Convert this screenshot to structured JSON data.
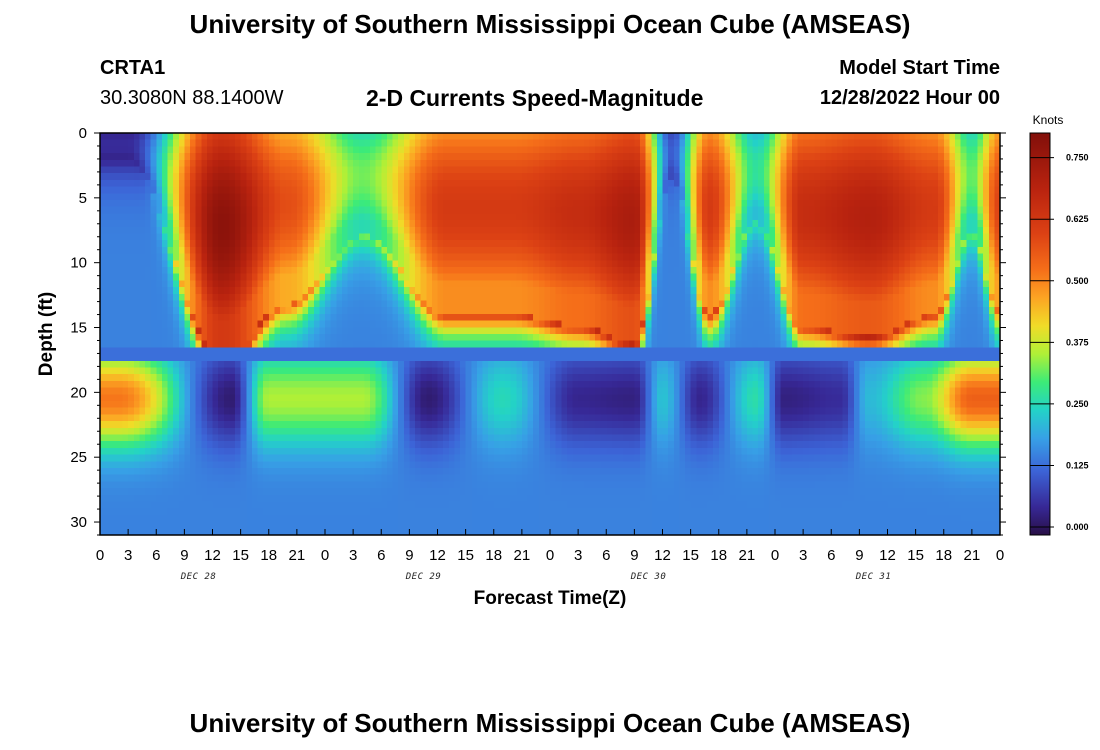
{
  "header": {
    "title": "University of Southern Mississippi Ocean Cube (AMSEAS)",
    "station": "CRTA1",
    "location": "30.3080N  88.1400W",
    "chart_title": "2-D Currents Speed-Magnitude",
    "model_start_label": "Model Start Time",
    "model_start_value": "12/28/2022 Hour 00"
  },
  "footer": {
    "title": "University of Southern Mississippi Ocean Cube (AMSEAS)"
  },
  "chart_data": {
    "type": "heatmap",
    "xlabel": "Forecast Time(Z)",
    "ylabel": "Depth (ft)",
    "x_range_hours": [
      0,
      96
    ],
    "y_range_ft": [
      0,
      31
    ],
    "y_reversed": true,
    "x_tick_labels": [
      "0",
      "3",
      "6",
      "9",
      "12",
      "15",
      "18",
      "21",
      "0",
      "3",
      "6",
      "9",
      "12",
      "15",
      "18",
      "21",
      "0",
      "3",
      "6",
      "9",
      "12",
      "15",
      "18",
      "21",
      "0",
      "3",
      "6",
      "9",
      "12",
      "15",
      "18",
      "21",
      "0"
    ],
    "y_ticks": [
      0,
      5,
      10,
      15,
      20,
      25,
      30
    ],
    "day_labels": [
      "DEC 28",
      "DEC 29",
      "DEC 30",
      "DEC 31"
    ],
    "colorbar": {
      "unit": "Knots",
      "ticks": [
        "0.750",
        "0.625",
        "0.500",
        "0.375",
        "0.250",
        "0.125",
        "0.000"
      ],
      "tick_values": [
        0.75,
        0.625,
        0.5,
        0.375,
        0.25,
        0.125,
        0.0
      ],
      "range": [
        0,
        0.8
      ]
    },
    "upper_layer": {
      "depth_range_ft": [
        0,
        16.5
      ],
      "peaks": [
        {
          "hour": 3,
          "value": 0.06
        },
        {
          "hour": 13,
          "value": 0.78
        },
        {
          "hour": 20,
          "value": 0.58
        },
        {
          "hour": 28,
          "value": 0.33
        },
        {
          "hour": 37,
          "value": 0.62
        },
        {
          "hour": 44,
          "value": 0.62
        },
        {
          "hour": 51,
          "value": 0.66
        },
        {
          "hour": 57,
          "value": 0.72
        },
        {
          "hour": 61,
          "value": 0.12
        },
        {
          "hour": 65,
          "value": 0.62
        },
        {
          "hour": 70,
          "value": 0.28
        },
        {
          "hour": 75,
          "value": 0.66
        },
        {
          "hour": 82,
          "value": 0.7
        },
        {
          "hour": 89,
          "value": 0.62
        },
        {
          "hour": 93,
          "value": 0.32
        },
        {
          "hour": 96,
          "value": 0.6
        }
      ]
    },
    "lower_layer": {
      "depth_range_ft": [
        16.5,
        31
      ],
      "peaks": [
        {
          "hour": 2,
          "value": 0.52
        },
        {
          "hour": 14,
          "value": 0.03
        },
        {
          "hour": 18,
          "value": 0.36
        },
        {
          "hour": 28,
          "value": 0.36
        },
        {
          "hour": 35,
          "value": 0.03
        },
        {
          "hour": 43,
          "value": 0.26
        },
        {
          "hour": 51,
          "value": 0.05
        },
        {
          "hour": 57,
          "value": 0.04
        },
        {
          "hour": 60,
          "value": 0.23
        },
        {
          "hour": 64,
          "value": 0.05
        },
        {
          "hour": 70,
          "value": 0.27
        },
        {
          "hour": 73,
          "value": 0.04
        },
        {
          "hour": 79,
          "value": 0.06
        },
        {
          "hour": 82,
          "value": 0.22
        },
        {
          "hour": 88,
          "value": 0.34
        },
        {
          "hour": 93,
          "value": 0.55
        }
      ]
    }
  }
}
